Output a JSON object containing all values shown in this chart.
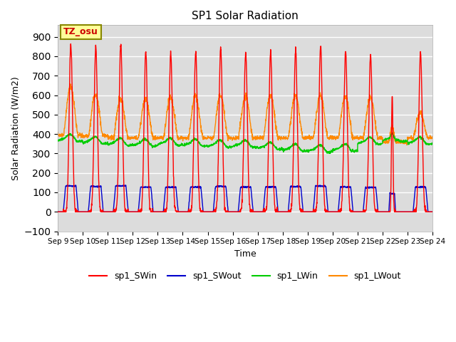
{
  "title": "SP1 Solar Radiation",
  "xlabel": "Time",
  "ylabel": "Solar Radiation (W/m2)",
  "ylim": [
    -100,
    960
  ],
  "yticks": [
    -100,
    0,
    100,
    200,
    300,
    400,
    500,
    600,
    700,
    800,
    900
  ],
  "tz_label": "TZ_osu",
  "bg_color": "#dcdcdc",
  "fig_bg_color": "#ffffff",
  "series": {
    "sp1_SWin": {
      "color": "#ff0000",
      "lw": 1.0
    },
    "sp1_SWout": {
      "color": "#0000cc",
      "lw": 1.0
    },
    "sp1_LWin": {
      "color": "#00cc00",
      "lw": 1.0
    },
    "sp1_LWout": {
      "color": "#ff8800",
      "lw": 1.0
    }
  },
  "x_tick_labels": [
    "Sep 9",
    "Sep 10",
    "Sep 11",
    "Sep 12",
    "Sep 13",
    "Sep 14",
    "Sep 15",
    "Sep 16",
    "Sep 17",
    "Sep 18",
    "Sep 19",
    "Sep 20",
    "Sep 21",
    "Sep 22",
    "Sep 23",
    "Sep 24"
  ],
  "grid_color": "#ffffff",
  "grid_lw": 1.0,
  "sw_peaks": [
    860,
    845,
    860,
    822,
    815,
    822,
    845,
    818,
    826,
    835,
    855,
    826,
    808,
    605,
    820
  ],
  "lw_out_peaks": [
    645,
    605,
    580,
    580,
    590,
    595,
    600,
    590,
    600,
    600,
    600,
    595,
    590,
    440,
    510
  ],
  "lw_in_base": [
    370,
    358,
    350,
    345,
    350,
    345,
    340,
    340,
    330,
    320,
    315,
    320,
    355,
    370,
    355
  ],
  "partial_day": 13
}
